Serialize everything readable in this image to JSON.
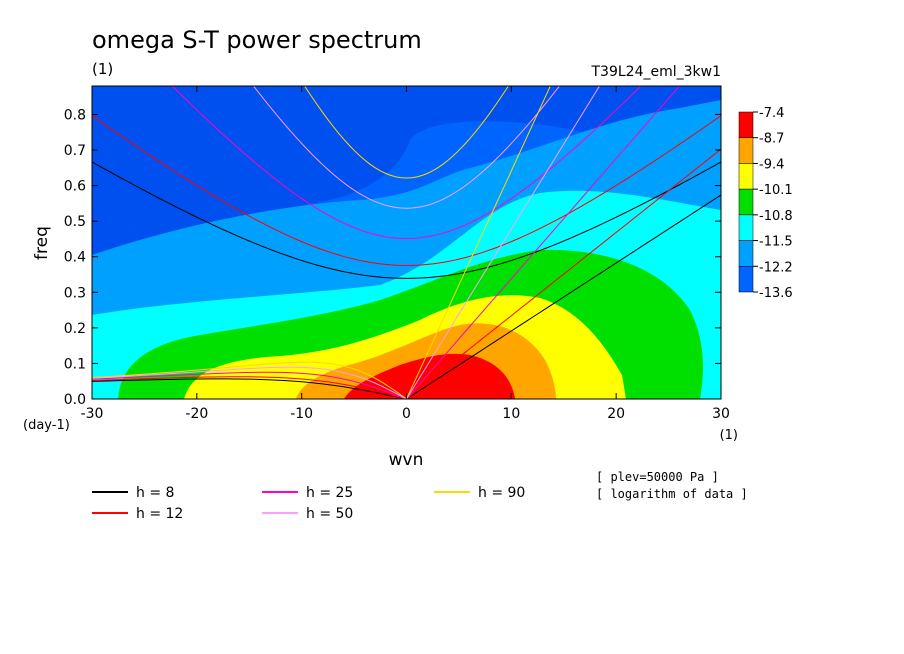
{
  "chart_data": {
    "type": "heatmap",
    "title": "omega S-T power spectrum",
    "subtitle": "(1)",
    "run_label": "T39L24_eml_3kw1",
    "xlabel": "wvn",
    "x_unit": "(1)",
    "ylabel": "freq",
    "y_unit": "(day-1)",
    "xlim": [
      -30,
      30
    ],
    "ylim": [
      0,
      0.88
    ],
    "x_ticks": [
      "-30",
      "-20",
      "-10",
      "0",
      "10",
      "20",
      "30"
    ],
    "x_tick_values": [
      -30,
      -20,
      -10,
      0,
      10,
      20,
      30
    ],
    "y_ticks": [
      "0.0",
      "0.1",
      "0.2",
      "0.3",
      "0.4",
      "0.5",
      "0.6",
      "0.7",
      "0.8"
    ],
    "y_tick_values": [
      0,
      0.1,
      0.2,
      0.3,
      0.4,
      0.5,
      0.6,
      0.7,
      0.8
    ],
    "colorbar": {
      "labels": [
        "-7.4",
        "-8.7",
        "-9.4",
        "-10.1",
        "-10.8",
        "-11.5",
        "-12.2",
        "-13.6"
      ],
      "colors": [
        "#ff0000",
        "#ffa500",
        "#ffff00",
        "#00e000",
        "#00ffff",
        "#00a0ff",
        "#0064ff"
      ]
    },
    "notes": [
      "[ plev=50000 Pa ]",
      "[ logarithm of data ]"
    ],
    "dispersion_curves": [
      {
        "name": "h =  8",
        "h": 8,
        "color": "#000000"
      },
      {
        "name": "h = 12",
        "h": 12,
        "color": "#ff0000"
      },
      {
        "name": "h = 25",
        "h": 25,
        "color": "#ff00c8"
      },
      {
        "name": "h = 50",
        "h": 50,
        "color": "#ff9cff"
      },
      {
        "name": "h = 90",
        "h": 90,
        "color": "#ffd700"
      }
    ],
    "grid": false,
    "legend_position": "bottom-left"
  }
}
